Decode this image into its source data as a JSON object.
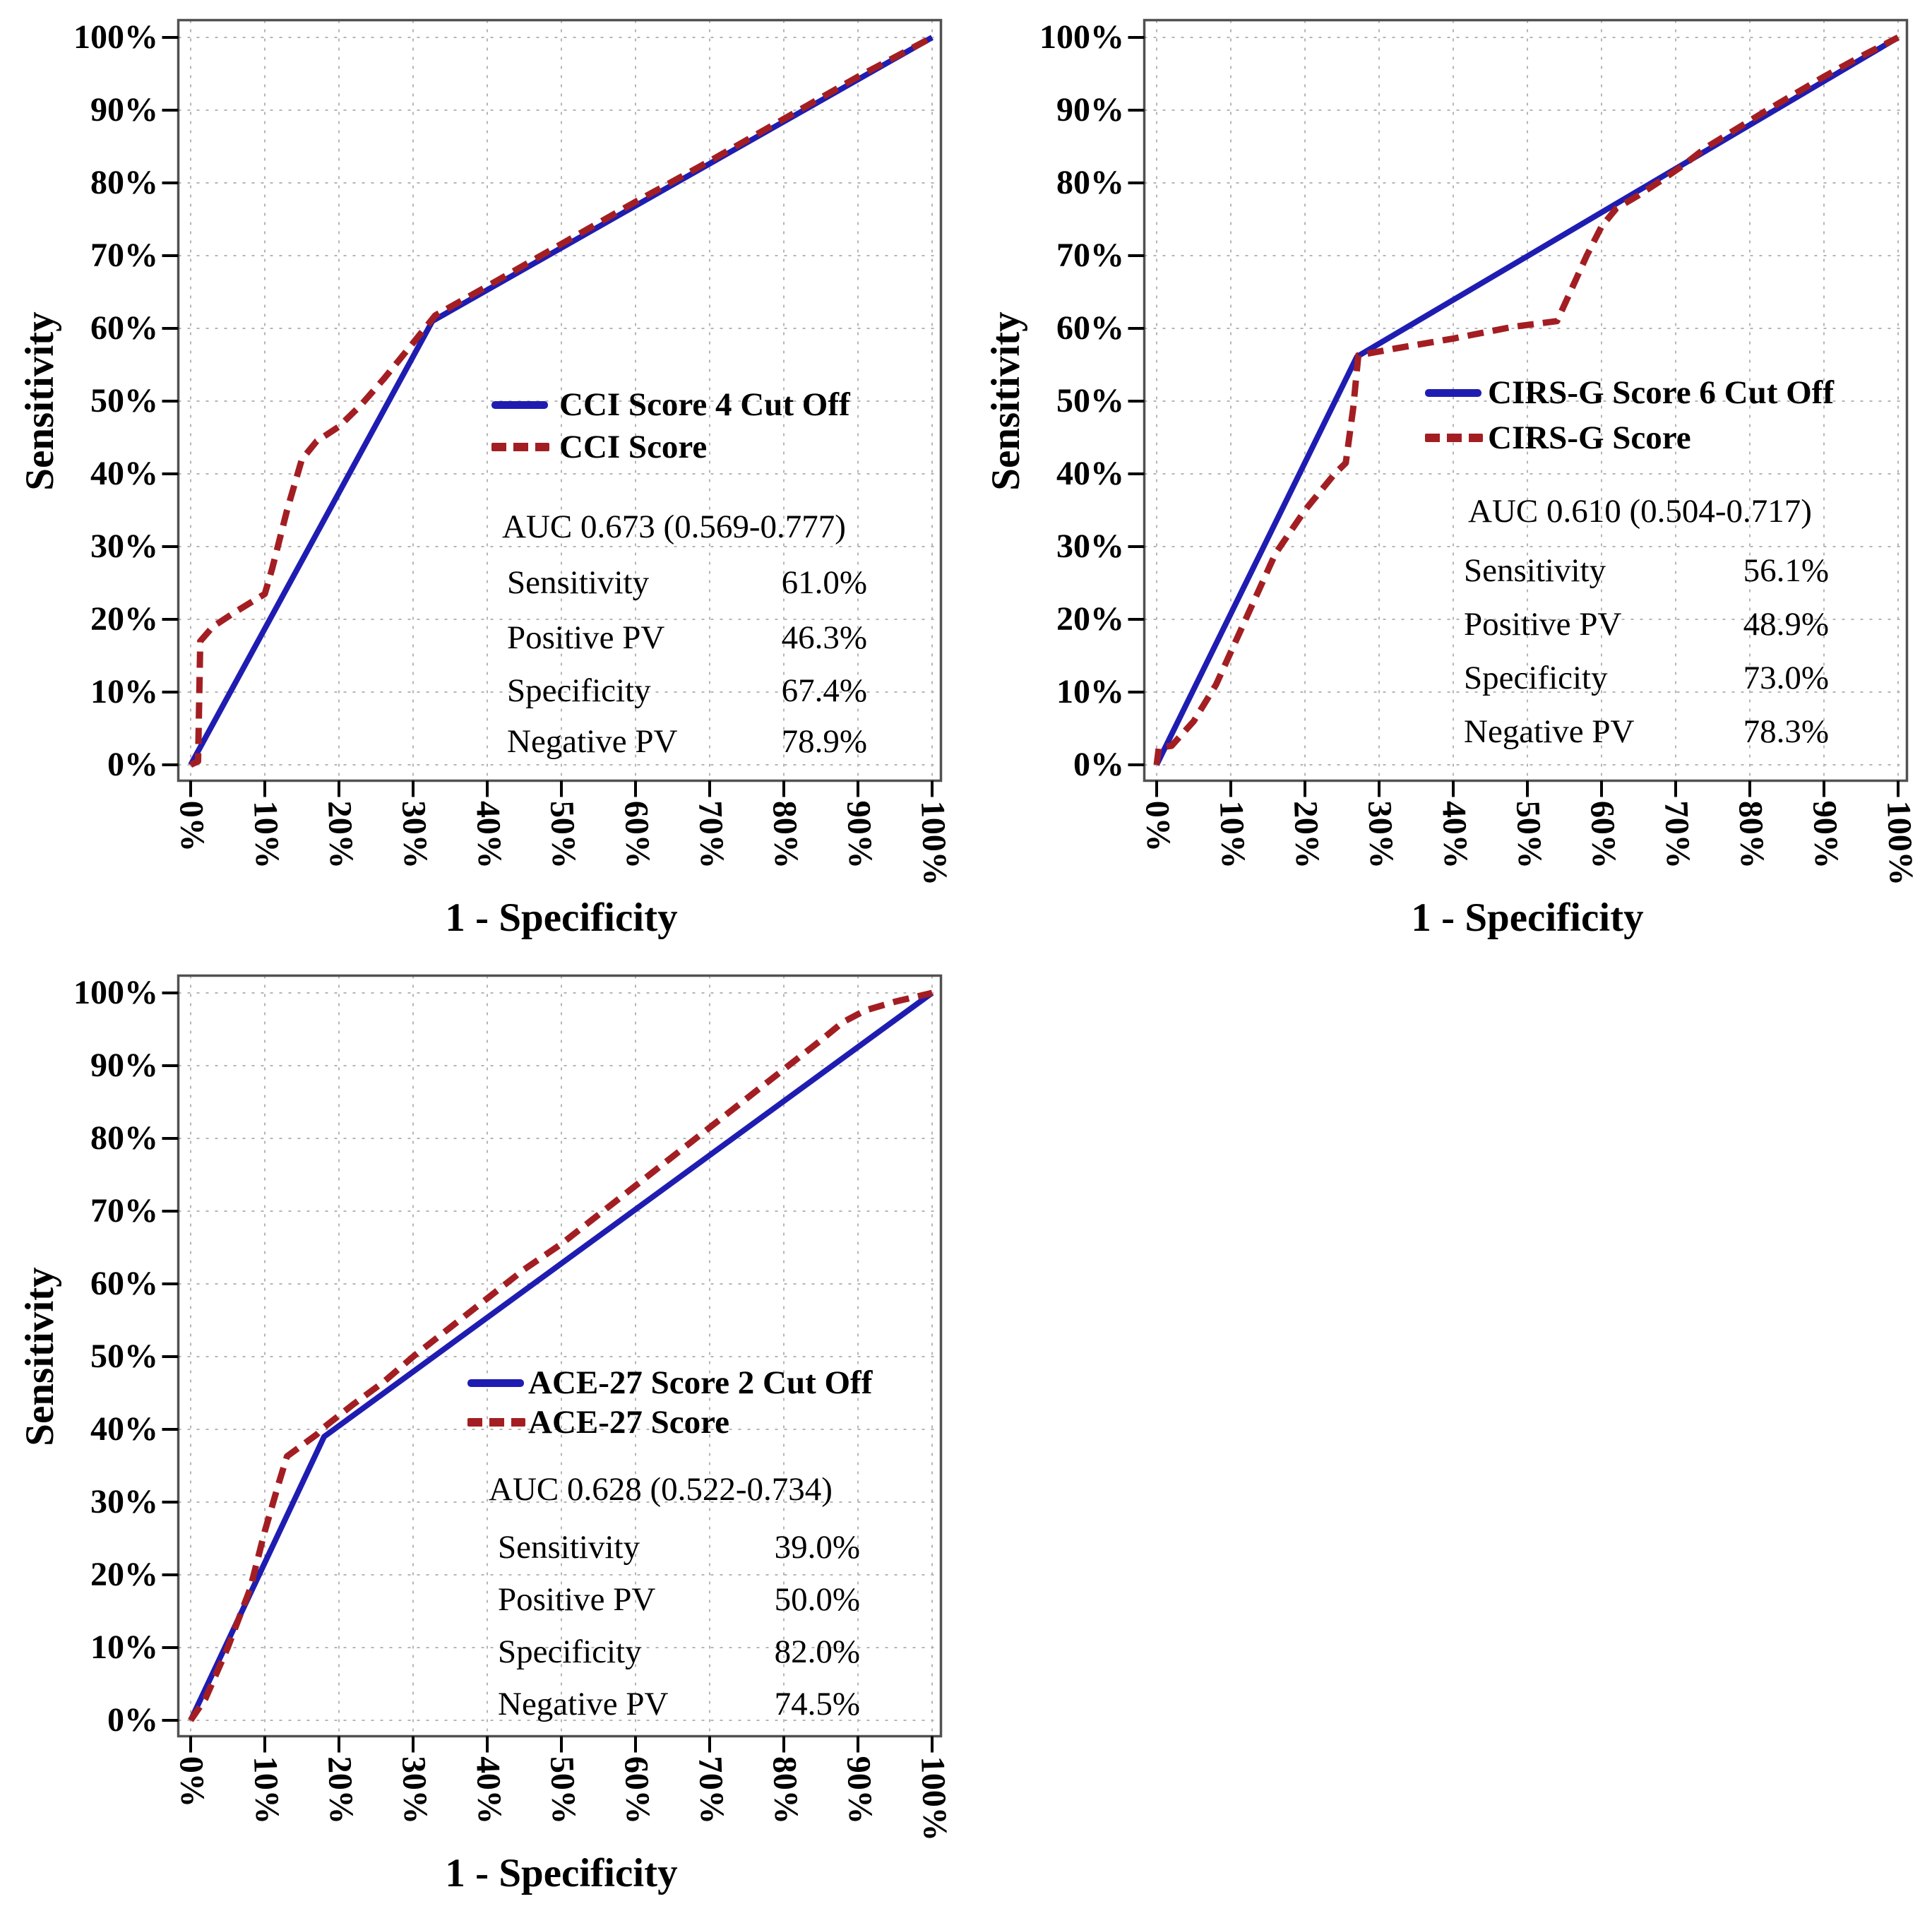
{
  "figure": {
    "background": "#ffffff",
    "description": "Three ROC curve panels comparing comorbidity scores and their cut-off classifiers"
  },
  "axis": {
    "x_title": "1 - Specificity",
    "y_title": "Sensitivity",
    "tick_labels": [
      "0%",
      "10%",
      "20%",
      "30%",
      "40%",
      "50%",
      "60%",
      "70%",
      "80%",
      "90%",
      "100%"
    ]
  },
  "colors": {
    "cutoff_line": "#1f1db1",
    "score_line": "#a31e22",
    "grid": "#b5b5b5",
    "frame": "#515151",
    "tick": "#000000",
    "text": "#000000"
  },
  "chart_data": [
    {
      "type": "line",
      "panel": "top-left",
      "xlabel": "1 - Specificity",
      "ylabel": "Sensitivity",
      "x_range": [
        0,
        100
      ],
      "y_range": [
        0,
        100
      ],
      "grid": true,
      "legend_position": "inside-right",
      "auc": "AUC 0.673 (0.569-0.777)",
      "stats": [
        {
          "label": "Sensitivity",
          "value": "61.0%"
        },
        {
          "label": "Positive PV",
          "value": "46.3%"
        },
        {
          "label": "Specificity",
          "value": "67.4%"
        },
        {
          "label": "Negative PV",
          "value": "78.9%"
        }
      ],
      "series": [
        {
          "name": "CCI Score 4 Cut Off",
          "style": "solid",
          "color": "#1f1db1",
          "points": [
            [
              0,
              0
            ],
            [
              32.6,
              61
            ],
            [
              100,
              100
            ]
          ]
        },
        {
          "name": "CCI Score",
          "style": "dashed",
          "color": "#a31e22",
          "points": [
            [
              0,
              0
            ],
            [
              1,
              0.5
            ],
            [
              1.3,
              17
            ],
            [
              3,
              19
            ],
            [
              6,
              21
            ],
            [
              10,
              23.5
            ],
            [
              11,
              27
            ],
            [
              13,
              35
            ],
            [
              15,
              42
            ],
            [
              17,
              44.5
            ],
            [
              20,
              46.5
            ],
            [
              23,
              49.5
            ],
            [
              26,
              53
            ],
            [
              30,
              58
            ],
            [
              33,
              61.8
            ],
            [
              40,
              65.8
            ],
            [
              50,
              71.6
            ],
            [
              60,
              77.4
            ],
            [
              70,
              83
            ],
            [
              80,
              88.8
            ],
            [
              90,
              94.6
            ],
            [
              100,
              100
            ]
          ]
        }
      ]
    },
    {
      "type": "line",
      "panel": "top-right",
      "xlabel": "1 - Specificity",
      "ylabel": "Sensitivity",
      "x_range": [
        0,
        100
      ],
      "y_range": [
        0,
        100
      ],
      "grid": true,
      "legend_position": "inside-right",
      "auc": "AUC 0.610 (0.504-0.717)",
      "stats": [
        {
          "label": "Sensitivity",
          "value": "56.1%"
        },
        {
          "label": "Positive PV",
          "value": "48.9%"
        },
        {
          "label": "Specificity",
          "value": "73.0%"
        },
        {
          "label": "Negative PV",
          "value": "78.3%"
        }
      ],
      "series": [
        {
          "name": "CIRS-G Score 6 Cut Off",
          "style": "solid",
          "color": "#1f1db1",
          "points": [
            [
              0,
              0
            ],
            [
              27,
              56.1
            ],
            [
              100,
              100
            ]
          ]
        },
        {
          "name": "CIRS-G Score",
          "style": "dashed",
          "color": "#a31e22",
          "points": [
            [
              0,
              0
            ],
            [
              0.3,
              2.4
            ],
            [
              2,
              2.6
            ],
            [
              5,
              6
            ],
            [
              8,
              11
            ],
            [
              12,
              20
            ],
            [
              16,
              29
            ],
            [
              20,
              35
            ],
            [
              24,
              40
            ],
            [
              25.5,
              41.5
            ],
            [
              26.5,
              49
            ],
            [
              27.2,
              56.3
            ],
            [
              32,
              57.2
            ],
            [
              40,
              58.6
            ],
            [
              48,
              60.2
            ],
            [
              54,
              61
            ],
            [
              56,
              65.5
            ],
            [
              58,
              70
            ],
            [
              60,
              74
            ],
            [
              62,
              76.5
            ],
            [
              65,
              78.3
            ],
            [
              68,
              80.3
            ],
            [
              71,
              82.4
            ],
            [
              74,
              84.8
            ],
            [
              78,
              87.3
            ],
            [
              82,
              89.8
            ],
            [
              86,
              92.2
            ],
            [
              90,
              94.6
            ],
            [
              95,
              97.4
            ],
            [
              100,
              100
            ]
          ]
        }
      ]
    },
    {
      "type": "line",
      "panel": "bottom-left",
      "xlabel": "1 - Specificity",
      "ylabel": "Sensitivity",
      "x_range": [
        0,
        100
      ],
      "y_range": [
        0,
        100
      ],
      "grid": true,
      "legend_position": "inside-right",
      "auc": "AUC 0.628 (0.522-0.734)",
      "stats": [
        {
          "label": "Sensitivity",
          "value": "39.0%"
        },
        {
          "label": "Positive PV",
          "value": "50.0%"
        },
        {
          "label": "Specificity",
          "value": "82.0%"
        },
        {
          "label": "Negative PV",
          "value": "74.5%"
        }
      ],
      "series": [
        {
          "name": "ACE-27 Score 2 Cut Off",
          "style": "solid",
          "color": "#1f1db1",
          "points": [
            [
              0,
              0
            ],
            [
              18,
              39
            ],
            [
              100,
              100
            ]
          ]
        },
        {
          "name": "ACE-27 Score",
          "style": "dashed",
          "color": "#a31e22",
          "points": [
            [
              0,
              0
            ],
            [
              2,
              3
            ],
            [
              5,
              10
            ],
            [
              8,
              18
            ],
            [
              10,
              26
            ],
            [
              12,
              33
            ],
            [
              13,
              36.3
            ],
            [
              15,
              37.8
            ],
            [
              17,
              39.3
            ],
            [
              18,
              40.3
            ],
            [
              22,
              43.5
            ],
            [
              26,
              46.5
            ],
            [
              30,
              50
            ],
            [
              35,
              54
            ],
            [
              40,
              58
            ],
            [
              45,
              62
            ],
            [
              50,
              65.5
            ],
            [
              55,
              69.5
            ],
            [
              60,
              73.5
            ],
            [
              65,
              77.5
            ],
            [
              70,
              81.5
            ],
            [
              75,
              85.5
            ],
            [
              80,
              89.5
            ],
            [
              85,
              93.5
            ],
            [
              88,
              96
            ],
            [
              91,
              97.6
            ],
            [
              95,
              98.8
            ],
            [
              100,
              100
            ]
          ]
        }
      ]
    }
  ]
}
